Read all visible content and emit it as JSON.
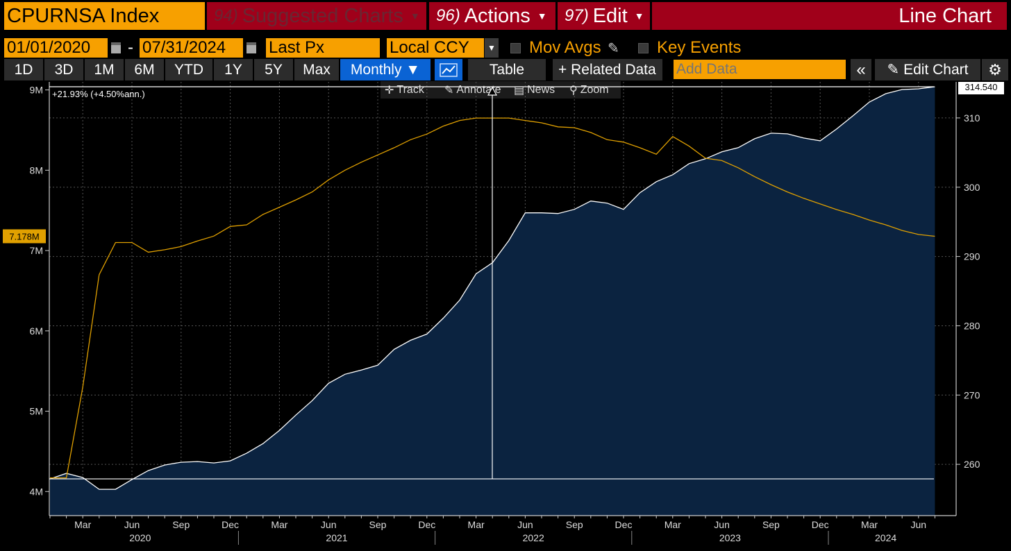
{
  "header": {
    "security_title": "CPURNSA Index",
    "menus": [
      {
        "num": "94)",
        "label": "Suggested Charts"
      },
      {
        "num": "96)",
        "label": "Actions"
      },
      {
        "num": "97)",
        "label": "Edit"
      }
    ],
    "chart_type": "Line Chart"
  },
  "controls": {
    "start_date": "01/01/2020",
    "date_sep": "-",
    "end_date": "07/31/2024",
    "field": "Last Px",
    "currency": "Local CCY",
    "mov_avgs": "Mov Avgs",
    "key_events": "Key Events"
  },
  "toolbar": {
    "ranges": [
      "1D",
      "3D",
      "1M",
      "6M",
      "YTD",
      "1Y",
      "5Y",
      "Max"
    ],
    "frequency": "Monthly ▼",
    "table": "Table",
    "related": "+ Related Data",
    "add_data_placeholder": "Add Data",
    "collapse": "«",
    "edit_chart": "Edit Chart"
  },
  "tools": [
    "Track",
    "Annotate",
    "News",
    "Zoom"
  ],
  "icons": [
    "calendar-icon",
    "checkbox-icon",
    "pencil-icon",
    "line-chart-icon",
    "gear-icon",
    "crosshair-icon",
    "magnifier-icon"
  ],
  "colors": {
    "accent": "#f7a000",
    "menu_red": "#a0001a",
    "area_fill": "#0b2340",
    "blue_btn": "#0a63d4",
    "series_yellow": "#e0a000"
  },
  "chart_data": {
    "type": "line",
    "annotation": "+21.93% (+4.50%ann.)",
    "x": [
      "2020-01",
      "2020-02",
      "2020-03",
      "2020-04",
      "2020-05",
      "2020-06",
      "2020-07",
      "2020-08",
      "2020-09",
      "2020-10",
      "2020-11",
      "2020-12",
      "2021-01",
      "2021-02",
      "2021-03",
      "2021-04",
      "2021-05",
      "2021-06",
      "2021-07",
      "2021-08",
      "2021-09",
      "2021-10",
      "2021-11",
      "2021-12",
      "2022-01",
      "2022-02",
      "2022-03",
      "2022-04",
      "2022-05",
      "2022-06",
      "2022-07",
      "2022-08",
      "2022-09",
      "2022-10",
      "2022-11",
      "2022-12",
      "2023-01",
      "2023-02",
      "2023-03",
      "2023-04",
      "2023-05",
      "2023-06",
      "2023-07",
      "2023-08",
      "2023-09",
      "2023-10",
      "2023-11",
      "2023-12",
      "2024-01",
      "2024-02",
      "2024-03",
      "2024-04",
      "2024-05",
      "2024-06",
      "2024-07"
    ],
    "x_month_labels": [
      "Mar",
      "Jun",
      "Sep",
      "Dec",
      "Mar",
      "Jun",
      "Sep",
      "Dec",
      "Mar",
      "Jun",
      "Sep",
      "Dec",
      "Mar",
      "Jun",
      "Sep",
      "Dec",
      "Mar",
      "Jun"
    ],
    "x_year_labels": [
      "2020",
      "2021",
      "2022",
      "2023",
      "2024"
    ],
    "series": [
      {
        "axis": "right",
        "style": "area",
        "color": "#ffffff",
        "values": [
          257.9,
          258.7,
          258.1,
          256.4,
          256.4,
          257.8,
          259.1,
          259.9,
          260.3,
          260.4,
          260.2,
          260.5,
          261.6,
          263.0,
          264.9,
          267.1,
          269.2,
          271.7,
          273.0,
          273.6,
          274.3,
          276.6,
          277.9,
          278.8,
          281.1,
          283.7,
          287.5,
          289.1,
          292.3,
          296.3,
          296.3,
          296.2,
          296.8,
          298.0,
          297.7,
          296.8,
          299.2,
          300.8,
          301.8,
          303.4,
          304.1,
          305.1,
          305.7,
          307.0,
          307.8,
          307.7,
          307.1,
          306.7,
          308.4,
          310.3,
          312.3,
          313.5,
          314.1,
          314.2,
          314.5
        ]
      },
      {
        "axis": "left",
        "style": "line",
        "color": "#e0a000",
        "values": [
          4.17,
          4.17,
          5.3,
          6.7,
          7.1,
          7.1,
          6.98,
          7.01,
          7.05,
          7.12,
          7.18,
          7.3,
          7.32,
          7.45,
          7.54,
          7.63,
          7.73,
          7.88,
          8.0,
          8.1,
          8.19,
          8.28,
          8.38,
          8.45,
          8.55,
          8.62,
          8.65,
          8.65,
          8.65,
          8.62,
          8.59,
          8.54,
          8.53,
          8.47,
          8.38,
          8.35,
          8.28,
          8.2,
          8.42,
          8.3,
          8.15,
          8.12,
          8.03,
          7.92,
          7.82,
          7.73,
          7.65,
          7.58,
          7.51,
          7.45,
          7.38,
          7.32,
          7.25,
          7.2,
          7.178
        ]
      }
    ],
    "left_axis": {
      "ticks": [
        "4M",
        "5M",
        "6M",
        "7M",
        "8M",
        "9M"
      ],
      "last_label": "7.178M",
      "range": [
        3.7,
        9.1
      ]
    },
    "right_axis": {
      "ticks": [
        "260",
        "270",
        "280",
        "290",
        "300",
        "310"
      ],
      "last_label": "314.540",
      "range": [
        252.6,
        315.2
      ]
    }
  }
}
